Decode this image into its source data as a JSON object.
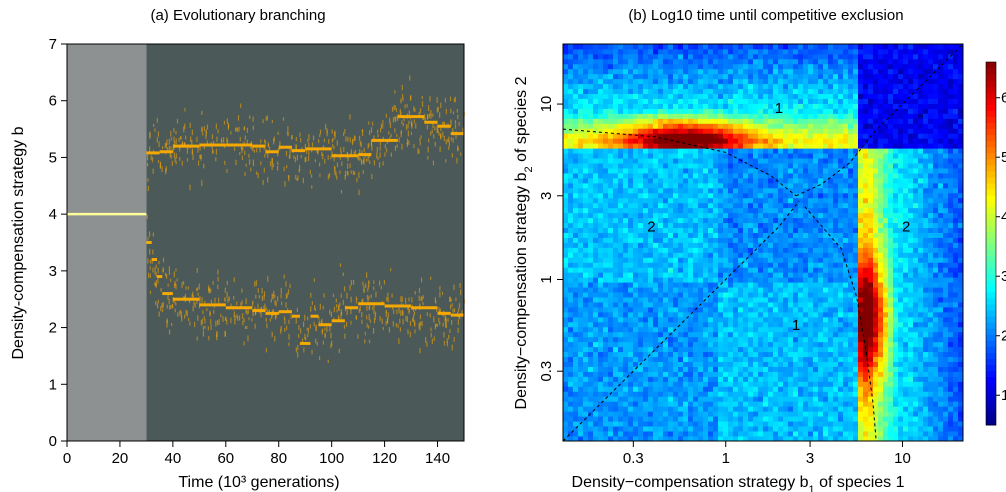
{
  "chart_data": [
    {
      "type": "scatter",
      "title": "(a) Evolutionary branching",
      "xlabel": "Time (10³ generations)",
      "ylabel": "Density-compensation strategy b",
      "xlim": [
        0,
        150
      ],
      "ylim": [
        0,
        7
      ],
      "x_ticks": [
        "0",
        "20",
        "40",
        "60",
        "80",
        "100",
        "120",
        "140"
      ],
      "y_ticks": [
        "0",
        "1",
        "2",
        "3",
        "4",
        "5",
        "6",
        "7"
      ],
      "colors": {
        "burn_in": "#8e9192",
        "background": "#4c5959",
        "trait": "#f5a800",
        "initial": "#ffff99"
      },
      "burn_in_end": 30,
      "initial_trait": 4.0,
      "series": [
        {
          "x": [
            30,
            35,
            40,
            50,
            60,
            70,
            75,
            80,
            85,
            90,
            100,
            110,
            115,
            120,
            125,
            130,
            135,
            140,
            145,
            150
          ],
          "y": [
            5.08,
            5.1,
            5.2,
            5.22,
            5.22,
            5.2,
            5.1,
            5.18,
            5.12,
            5.15,
            5.03,
            5.05,
            5.3,
            5.3,
            5.72,
            5.72,
            5.62,
            5.55,
            5.42,
            5.52
          ]
        },
        {
          "x": [
            30,
            32,
            34,
            36,
            40,
            45,
            50,
            60,
            70,
            75,
            80,
            85,
            88,
            92,
            95,
            100,
            105,
            110,
            120,
            130,
            140,
            145,
            150
          ],
          "y": [
            3.5,
            3.2,
            2.9,
            2.6,
            2.5,
            2.5,
            2.4,
            2.35,
            2.3,
            2.25,
            2.28,
            2.2,
            1.72,
            2.2,
            2.05,
            2.12,
            2.35,
            2.42,
            2.38,
            2.35,
            2.25,
            2.22,
            2.22
          ]
        }
      ]
    },
    {
      "type": "heatmap",
      "title": "(b) Log10 time until competitive exclusion",
      "xlabel": "Density−compensation strategy b",
      "xlabel_sub": "1",
      "xlabel_suffix": " of species 1",
      "ylabel": "Density−compensation strategy b",
      "ylabel_sub": "2",
      "ylabel_suffix": " of species 2",
      "log_scale": true,
      "xlim": [
        0.12,
        22
      ],
      "ylim": [
        0.12,
        22
      ],
      "x_ticks": [
        0.3,
        1,
        3,
        10
      ],
      "x_tick_labels": [
        "0.3",
        "1",
        "3",
        "10"
      ],
      "y_ticks": [
        0.3,
        1,
        3,
        10
      ],
      "y_tick_labels": [
        "0.3",
        "1",
        "3",
        "10"
      ],
      "colorbar_ticks": [
        "1",
        "2",
        "3",
        "4",
        "5",
        "6"
      ],
      "colorbar_range": [
        0.5,
        6.6
      ],
      "region_labels": [
        {
          "text": "1",
          "x": 2.5,
          "y": 0.55
        },
        {
          "text": "2",
          "x": 0.38,
          "y": 2.0
        },
        {
          "text": "2",
          "x": 10.5,
          "y": 2.0
        },
        {
          "text": "1",
          "x": 2.0,
          "y": 9.5
        }
      ],
      "boundaries": [
        {
          "x": [
            0.12,
            0.3,
            0.7,
            1.2,
            2.0,
            2.6
          ],
          "y": [
            0.12,
            0.3,
            0.7,
            1.2,
            2.0,
            2.8
          ]
        },
        {
          "x": [
            0.12,
            0.4,
            1.0,
            1.8,
            2.5
          ],
          "y": [
            7.2,
            6.5,
            5.3,
            3.9,
            3.0
          ]
        },
        {
          "x": [
            2.5,
            3.5,
            5.0,
            7.0,
            12.0,
            22.0
          ],
          "y": [
            3.0,
            3.5,
            4.6,
            7.0,
            12.0,
            22.0
          ]
        },
        {
          "x": [
            2.8,
            4.5,
            5.5,
            6.2,
            6.8,
            7.1
          ],
          "y": [
            2.6,
            1.5,
            0.8,
            0.4,
            0.2,
            0.12
          ]
        }
      ]
    }
  ]
}
